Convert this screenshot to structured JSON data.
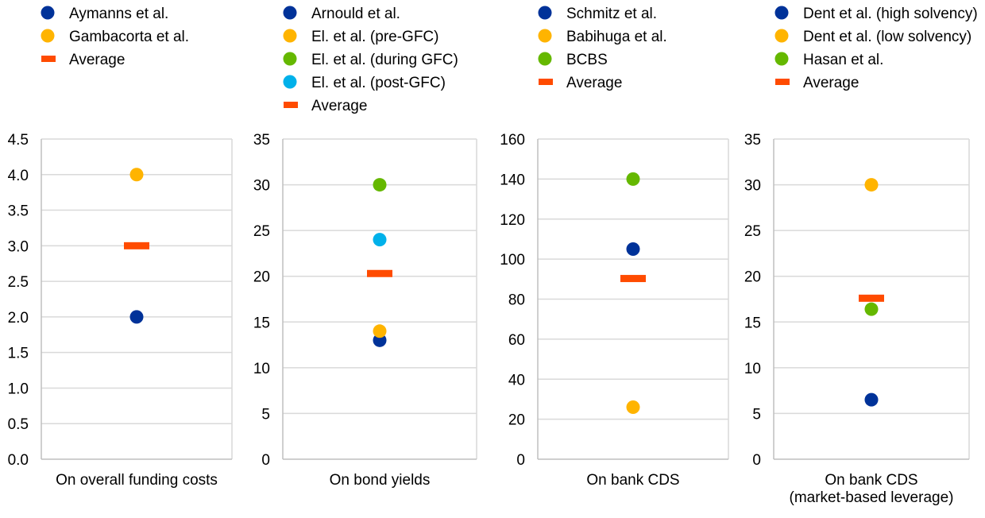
{
  "chart_data": [
    {
      "type": "scatter",
      "xlabel": [
        "On overall funding costs"
      ],
      "ylim": [
        0,
        4.5
      ],
      "ytick_step": 0.5,
      "ytick_decimals": 1,
      "grid": true,
      "legend": "top",
      "series": [
        {
          "name": "Aymanns et al.",
          "color": "#003299",
          "marker": "circle",
          "values": [
            2.0
          ]
        },
        {
          "name": "Gambacorta et al.",
          "color": "#FFB400",
          "marker": "circle",
          "values": [
            4.0
          ]
        },
        {
          "name": "Average",
          "color": "#FF4B00",
          "marker": "dash",
          "values": [
            3.0
          ]
        }
      ]
    },
    {
      "type": "scatter",
      "xlabel": [
        "On bond yields"
      ],
      "ylim": [
        0,
        35
      ],
      "ytick_step": 5,
      "ytick_decimals": 0,
      "grid": true,
      "legend": "top",
      "series": [
        {
          "name": "Arnould et al.",
          "color": "#003299",
          "marker": "circle",
          "values": [
            13
          ]
        },
        {
          "name": "El. et al. (pre-GFC)",
          "color": "#FFB400",
          "marker": "circle",
          "values": [
            14
          ]
        },
        {
          "name": "El. et al. (during GFC)",
          "color": "#65B800",
          "marker": "circle",
          "values": [
            30
          ]
        },
        {
          "name": "El. et al. (post-GFC)",
          "color": "#00B1EA",
          "marker": "circle",
          "values": [
            24
          ]
        },
        {
          "name": "Average",
          "color": "#FF4B00",
          "marker": "dash",
          "values": [
            20.3
          ]
        }
      ]
    },
    {
      "type": "scatter",
      "xlabel": [
        "On bank CDS"
      ],
      "ylim": [
        0,
        160
      ],
      "ytick_step": 20,
      "ytick_decimals": 0,
      "grid": true,
      "legend": "top",
      "series": [
        {
          "name": "Schmitz et al.",
          "color": "#003299",
          "marker": "circle",
          "values": [
            105
          ]
        },
        {
          "name": "Babihuga et al.",
          "color": "#FFB400",
          "marker": "circle",
          "values": [
            26
          ]
        },
        {
          "name": "BCBS",
          "color": "#65B800",
          "marker": "circle",
          "values": [
            140
          ]
        },
        {
          "name": "Average",
          "color": "#FF4B00",
          "marker": "dash",
          "values": [
            90.3
          ]
        }
      ]
    },
    {
      "type": "scatter",
      "xlabel": [
        "On bank CDS",
        "(market-based leverage)"
      ],
      "ylim": [
        0,
        35
      ],
      "ytick_step": 5,
      "ytick_decimals": 0,
      "grid": true,
      "legend": "top",
      "series": [
        {
          "name": "Dent et al. (high solvency)",
          "color": "#003299",
          "marker": "circle",
          "values": [
            6.5
          ]
        },
        {
          "name": "Dent et al. (low solvency)",
          "color": "#FFB400",
          "marker": "circle",
          "values": [
            30
          ]
        },
        {
          "name": "Hasan et al.",
          "color": "#65B800",
          "marker": "circle",
          "values": [
            16.4
          ]
        },
        {
          "name": "Average",
          "color": "#FF4B00",
          "marker": "dash",
          "values": [
            17.6
          ]
        }
      ]
    }
  ]
}
